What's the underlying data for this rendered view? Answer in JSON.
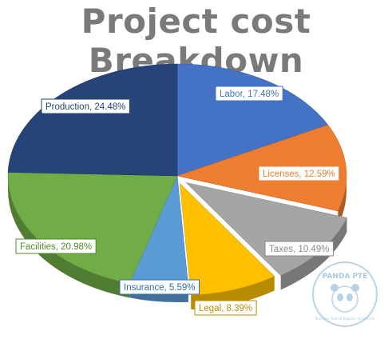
{
  "chart_data": {
    "type": "pie",
    "title": "Project cost Breakdown",
    "slices": [
      {
        "label": "Labor",
        "value": 17.48,
        "display": "Labor, 17.48%",
        "color": "#4472c4",
        "label_color": "#4472c4"
      },
      {
        "label": "Licenses",
        "value": 12.59,
        "display": "Licenses, 12.59%",
        "color": "#ed7d31",
        "label_color": "#ed7d31"
      },
      {
        "label": "Taxes",
        "value": 10.49,
        "display": "Taxes, 10.49%",
        "color": "#a5a5a5",
        "label_color": "#8a8a8a"
      },
      {
        "label": "Legal",
        "value": 8.39,
        "display": "Legal, 8.39%",
        "color": "#ffc000",
        "label_color": "#c08e00"
      },
      {
        "label": "Insurance",
        "value": 5.59,
        "display": "Insurance, 5.59%",
        "color": "#5b9bd5",
        "label_color": "#2f6fb0"
      },
      {
        "label": "Facilities",
        "value": 20.98,
        "display": "Facilities, 20.98%",
        "color": "#70ad47",
        "label_color": "#4f8a2c"
      },
      {
        "label": "Production",
        "value": 24.48,
        "display": "Production, 24.48%",
        "color": "#264478",
        "label_color": "#264478"
      }
    ],
    "legend": "none",
    "style": "3d-exploded"
  },
  "watermark": {
    "logo_text": "PANDA PTE",
    "caption": "Pearson Test of English Academic"
  }
}
